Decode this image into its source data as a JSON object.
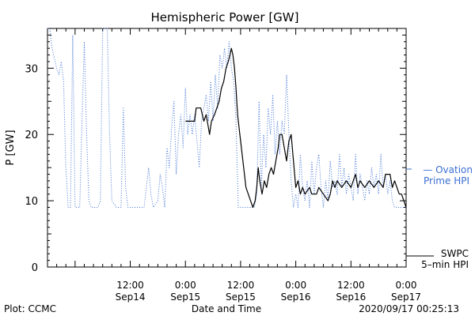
{
  "chart_data": {
    "type": "line",
    "title": "Hemispheric Power [GW]",
    "ylabel": "P [GW]",
    "xlabel": "Date and Time",
    "ylim": [
      0,
      36
    ],
    "yticks": [
      0,
      10,
      20,
      30
    ],
    "xlim": [
      "2020-09-13 18:00",
      "2020-09-17 00:00"
    ],
    "xticks": [
      {
        "t": "2020-09-14 12:00",
        "time": "12:00",
        "date": "Sep14"
      },
      {
        "t": "2020-09-15 00:00",
        "time": "0:00",
        "date": "Sep15"
      },
      {
        "t": "2020-09-15 12:00",
        "time": "12:00",
        "date": "Sep15"
      },
      {
        "t": "2020-09-16 00:00",
        "time": "0:00",
        "date": "Sep16"
      },
      {
        "t": "2020-09-16 12:00",
        "time": "12:00",
        "date": "Sep16"
      },
      {
        "t": "2020-09-17 00:00",
        "time": "0:00",
        "date": "Sep17"
      }
    ],
    "series": [
      {
        "name": "SWPC 5-min HPI",
        "style": "solid",
        "color": "#000000",
        "points": [
          [
            "2020-09-15 00:00",
            22
          ],
          [
            "2020-09-15 02:00",
            22
          ],
          [
            "2020-09-15 02:20",
            24
          ],
          [
            "2020-09-15 03:20",
            24
          ],
          [
            "2020-09-15 04:00",
            22
          ],
          [
            "2020-09-15 04:30",
            23
          ],
          [
            "2020-09-15 05:00",
            21
          ],
          [
            "2020-09-15 05:15",
            20
          ],
          [
            "2020-09-15 05:40",
            22
          ],
          [
            "2020-09-15 06:20",
            23
          ],
          [
            "2020-09-15 06:50",
            24
          ],
          [
            "2020-09-15 07:20",
            25
          ],
          [
            "2020-09-15 07:50",
            27
          ],
          [
            "2020-09-15 08:20",
            28
          ],
          [
            "2020-09-15 08:50",
            30
          ],
          [
            "2020-09-15 09:20",
            31
          ],
          [
            "2020-09-15 09:40",
            32
          ],
          [
            "2020-09-15 10:00",
            33
          ],
          [
            "2020-09-15 10:20",
            32
          ],
          [
            "2020-09-15 10:40",
            30
          ],
          [
            "2020-09-15 11:00",
            27
          ],
          [
            "2020-09-15 11:20",
            23
          ],
          [
            "2020-09-15 11:40",
            21
          ],
          [
            "2020-09-15 12:10",
            18
          ],
          [
            "2020-09-15 12:40",
            15
          ],
          [
            "2020-09-15 13:10",
            12
          ],
          [
            "2020-09-15 13:40",
            11
          ],
          [
            "2020-09-15 14:10",
            10
          ],
          [
            "2020-09-15 14:40",
            9
          ],
          [
            "2020-09-15 15:10",
            10
          ],
          [
            "2020-09-15 15:30",
            12
          ],
          [
            "2020-09-15 15:50",
            15
          ],
          [
            "2020-09-15 16:10",
            13
          ],
          [
            "2020-09-15 16:40",
            11
          ],
          [
            "2020-09-15 17:10",
            13
          ],
          [
            "2020-09-15 17:40",
            12
          ],
          [
            "2020-09-15 18:10",
            14
          ],
          [
            "2020-09-15 18:40",
            15
          ],
          [
            "2020-09-15 19:10",
            14
          ],
          [
            "2020-09-15 19:40",
            16
          ],
          [
            "2020-09-15 20:10",
            18
          ],
          [
            "2020-09-15 20:30",
            20
          ],
          [
            "2020-09-15 21:00",
            20
          ],
          [
            "2020-09-15 21:30",
            18
          ],
          [
            "2020-09-15 22:00",
            16
          ],
          [
            "2020-09-15 22:30",
            19
          ],
          [
            "2020-09-15 23:00",
            20
          ],
          [
            "2020-09-15 23:30",
            16
          ],
          [
            "2020-09-16 00:00",
            12
          ],
          [
            "2020-09-16 00:30",
            13
          ],
          [
            "2020-09-16 01:00",
            11
          ],
          [
            "2020-09-16 01:30",
            12
          ],
          [
            "2020-09-16 02:00",
            11
          ],
          [
            "2020-09-16 03:00",
            12
          ],
          [
            "2020-09-16 03:30",
            11
          ],
          [
            "2020-09-16 04:30",
            11
          ],
          [
            "2020-09-16 05:00",
            12
          ],
          [
            "2020-09-16 06:00",
            11
          ],
          [
            "2020-09-16 07:00",
            10
          ],
          [
            "2020-09-16 07:30",
            11
          ],
          [
            "2020-09-16 08:00",
            13
          ],
          [
            "2020-09-16 08:30",
            12
          ],
          [
            "2020-09-16 09:00",
            13
          ],
          [
            "2020-09-16 10:00",
            12
          ],
          [
            "2020-09-16 11:00",
            13
          ],
          [
            "2020-09-16 12:00",
            12
          ],
          [
            "2020-09-16 13:00",
            14
          ],
          [
            "2020-09-16 13:30",
            12
          ],
          [
            "2020-09-16 14:00",
            13
          ],
          [
            "2020-09-16 15:00",
            12
          ],
          [
            "2020-09-16 16:00",
            13
          ],
          [
            "2020-09-16 17:00",
            12
          ],
          [
            "2020-09-16 18:00",
            13
          ],
          [
            "2020-09-16 19:00",
            12
          ],
          [
            "2020-09-16 19:30",
            14
          ],
          [
            "2020-09-16 20:30",
            14
          ],
          [
            "2020-09-16 21:00",
            12
          ],
          [
            "2020-09-16 21:30",
            13
          ],
          [
            "2020-09-16 22:00",
            12
          ],
          [
            "2020-09-16 22:30",
            11
          ],
          [
            "2020-09-16 23:00",
            11
          ],
          [
            "2020-09-16 23:30",
            10
          ],
          [
            "2020-09-17 00:00",
            9
          ]
        ]
      },
      {
        "name": "Ovation Prime HPI",
        "style": "dotted",
        "color": "#3b6fd4",
        "points": [
          [
            "2020-09-13 18:00",
            36
          ],
          [
            "2020-09-13 18:30",
            36
          ],
          [
            "2020-09-13 19:00",
            33
          ],
          [
            "2020-09-13 20:00",
            30
          ],
          [
            "2020-09-13 20:30",
            29
          ],
          [
            "2020-09-13 21:00",
            31
          ],
          [
            "2020-09-13 21:30",
            28
          ],
          [
            "2020-09-13 22:00",
            15
          ],
          [
            "2020-09-13 22:30",
            9
          ],
          [
            "2020-09-13 23:00",
            9
          ],
          [
            "2020-09-13 23:30",
            35
          ],
          [
            "2020-09-14 00:00",
            9
          ],
          [
            "2020-09-14 01:00",
            9
          ],
          [
            "2020-09-14 01:30",
            22
          ],
          [
            "2020-09-14 02:00",
            34
          ],
          [
            "2020-09-14 02:30",
            20
          ],
          [
            "2020-09-14 03:00",
            10
          ],
          [
            "2020-09-14 03:30",
            9
          ],
          [
            "2020-09-14 05:00",
            9
          ],
          [
            "2020-09-14 05:30",
            10
          ],
          [
            "2020-09-14 06:00",
            36
          ],
          [
            "2020-09-14 06:30",
            36
          ],
          [
            "2020-09-14 07:00",
            36
          ],
          [
            "2020-09-14 07:30",
            20
          ],
          [
            "2020-09-14 08:00",
            10
          ],
          [
            "2020-09-14 09:00",
            9
          ],
          [
            "2020-09-14 10:00",
            9
          ],
          [
            "2020-09-14 10:30",
            24
          ],
          [
            "2020-09-14 11:00",
            12
          ],
          [
            "2020-09-14 11:30",
            9
          ],
          [
            "2020-09-14 13:00",
            9
          ],
          [
            "2020-09-14 14:00",
            9
          ],
          [
            "2020-09-14 15:00",
            9
          ],
          [
            "2020-09-14 15:30",
            12
          ],
          [
            "2020-09-14 16:00",
            15
          ],
          [
            "2020-09-14 16:30",
            11
          ],
          [
            "2020-09-14 17:00",
            9
          ],
          [
            "2020-09-14 18:00",
            10
          ],
          [
            "2020-09-14 18:30",
            14
          ],
          [
            "2020-09-14 19:00",
            12
          ],
          [
            "2020-09-14 19:30",
            9
          ],
          [
            "2020-09-14 20:00",
            18
          ],
          [
            "2020-09-14 20:30",
            15
          ],
          [
            "2020-09-14 21:00",
            21
          ],
          [
            "2020-09-14 21:30",
            25
          ],
          [
            "2020-09-14 22:00",
            14
          ],
          [
            "2020-09-14 22:30",
            20
          ],
          [
            "2020-09-14 23:00",
            23
          ],
          [
            "2020-09-14 23:30",
            18
          ],
          [
            "2020-09-15 00:00",
            27
          ],
          [
            "2020-09-15 00:30",
            20
          ],
          [
            "2020-09-15 01:00",
            23
          ],
          [
            "2020-09-15 01:30",
            20
          ],
          [
            "2020-09-15 02:00",
            23
          ],
          [
            "2020-09-15 02:30",
            19
          ],
          [
            "2020-09-15 03:00",
            15
          ],
          [
            "2020-09-15 03:30",
            22
          ],
          [
            "2020-09-15 04:00",
            24
          ],
          [
            "2020-09-15 04:30",
            26
          ],
          [
            "2020-09-15 05:00",
            22
          ],
          [
            "2020-09-15 05:30",
            28
          ],
          [
            "2020-09-15 06:00",
            22
          ],
          [
            "2020-09-15 06:30",
            29
          ],
          [
            "2020-09-15 07:00",
            24
          ],
          [
            "2020-09-15 07:30",
            32
          ],
          [
            "2020-09-15 08:00",
            30
          ],
          [
            "2020-09-15 08:30",
            33
          ],
          [
            "2020-09-15 09:00",
            30
          ],
          [
            "2020-09-15 09:30",
            34
          ],
          [
            "2020-09-15 10:00",
            30
          ],
          [
            "2020-09-15 10:30",
            28
          ],
          [
            "2020-09-15 11:00",
            22
          ],
          [
            "2020-09-15 11:30",
            9
          ],
          [
            "2020-09-15 12:00",
            9
          ],
          [
            "2020-09-15 13:00",
            9
          ],
          [
            "2020-09-15 14:00",
            9
          ],
          [
            "2020-09-15 15:00",
            9
          ],
          [
            "2020-09-15 15:30",
            11
          ],
          [
            "2020-09-15 16:00",
            25
          ],
          [
            "2020-09-15 16:30",
            12
          ],
          [
            "2020-09-15 17:00",
            20
          ],
          [
            "2020-09-15 17:30",
            15
          ],
          [
            "2020-09-15 18:00",
            24
          ],
          [
            "2020-09-15 18:30",
            20
          ],
          [
            "2020-09-15 19:00",
            26
          ],
          [
            "2020-09-15 19:30",
            17
          ],
          [
            "2020-09-15 20:00",
            22
          ],
          [
            "2020-09-15 20:30",
            17
          ],
          [
            "2020-09-15 21:00",
            22
          ],
          [
            "2020-09-15 21:30",
            20
          ],
          [
            "2020-09-15 22:00",
            29
          ],
          [
            "2020-09-15 22:30",
            20
          ],
          [
            "2020-09-15 23:00",
            13
          ],
          [
            "2020-09-15 23:30",
            9
          ],
          [
            "2020-09-16 00:00",
            11
          ],
          [
            "2020-09-16 00:30",
            9
          ],
          [
            "2020-09-16 01:00",
            17
          ],
          [
            "2020-09-16 01:30",
            12
          ],
          [
            "2020-09-16 02:00",
            10
          ],
          [
            "2020-09-16 02:30",
            13
          ],
          [
            "2020-09-16 03:00",
            9
          ],
          [
            "2020-09-16 03:30",
            16
          ],
          [
            "2020-09-16 04:00",
            11
          ],
          [
            "2020-09-16 04:30",
            15
          ],
          [
            "2020-09-16 05:00",
            17
          ],
          [
            "2020-09-16 05:30",
            12
          ],
          [
            "2020-09-16 06:00",
            9
          ],
          [
            "2020-09-16 06:30",
            13
          ],
          [
            "2020-09-16 07:00",
            10
          ],
          [
            "2020-09-16 07:30",
            16
          ],
          [
            "2020-09-16 08:00",
            12
          ],
          [
            "2020-09-16 08:30",
            13
          ],
          [
            "2020-09-16 09:00",
            11
          ],
          [
            "2020-09-16 09:30",
            17
          ],
          [
            "2020-09-16 10:00",
            12
          ],
          [
            "2020-09-16 10:30",
            15
          ],
          [
            "2020-09-16 11:00",
            11
          ],
          [
            "2020-09-16 11:30",
            14
          ],
          [
            "2020-09-16 12:00",
            12
          ],
          [
            "2020-09-16 12:30",
            10
          ],
          [
            "2020-09-16 13:00",
            17
          ],
          [
            "2020-09-16 13:30",
            11
          ],
          [
            "2020-09-16 14:00",
            14
          ],
          [
            "2020-09-16 14:30",
            12
          ],
          [
            "2020-09-16 15:00",
            10
          ],
          [
            "2020-09-16 15:30",
            13
          ],
          [
            "2020-09-16 16:00",
            11
          ],
          [
            "2020-09-16 16:30",
            15
          ],
          [
            "2020-09-16 17:00",
            12
          ],
          [
            "2020-09-16 17:30",
            14
          ],
          [
            "2020-09-16 18:00",
            11
          ],
          [
            "2020-09-16 18:30",
            17
          ],
          [
            "2020-09-16 19:00",
            12
          ],
          [
            "2020-09-16 19:30",
            14
          ],
          [
            "2020-09-16 20:00",
            11
          ],
          [
            "2020-09-16 20:30",
            13
          ],
          [
            "2020-09-16 21:00",
            10
          ],
          [
            "2020-09-16 21:30",
            9
          ],
          [
            "2020-09-16 22:00",
            9
          ],
          [
            "2020-09-16 23:00",
            9
          ],
          [
            "2020-09-17 00:00",
            9
          ]
        ]
      }
    ],
    "legend": {
      "placement": "right",
      "ovation": [
        "— Ovation",
        "Prime HPI"
      ],
      "swpc": [
        "SWPC",
        "5–min HPI"
      ]
    }
  },
  "footer": {
    "left": "Plot: CCMC",
    "center": "Date and Time",
    "right": "2020/09/17 00:25:13"
  },
  "colors": {
    "ovation": "#3b6fd4",
    "swpc": "#000000",
    "axis": "#000000"
  }
}
